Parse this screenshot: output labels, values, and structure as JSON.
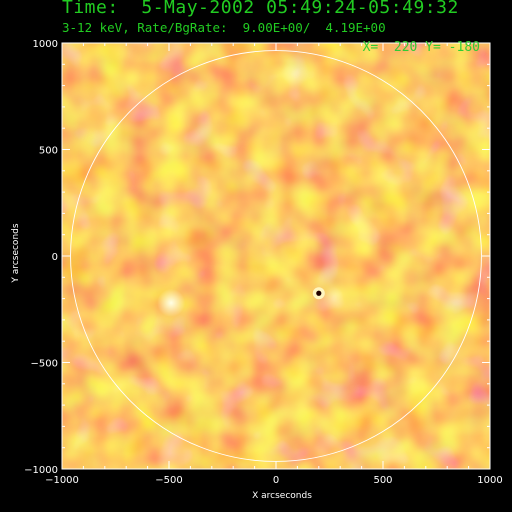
{
  "chart_data": {
    "type": "heatmap",
    "title": "Time:  5-May-2002 05:49:24-05:49:32",
    "subtitle": "3-12 keV, Rate/BgRate:  9.00E+00/  4.19E+00",
    "annotation": "X=  220 Y= -180",
    "xlabel": "X arcseconds",
    "ylabel": "Y arcseconds",
    "xlim": [
      -1000,
      1000
    ],
    "ylim": [
      -1000,
      1000
    ],
    "xticks": [
      -1000,
      -500,
      0,
      500,
      1000
    ],
    "yticks": [
      -1000,
      -500,
      0,
      500,
      1000
    ],
    "x_tick_labels": [
      "−1000",
      "−500",
      "0",
      "500",
      "1000"
    ],
    "y_tick_labels": [
      "−1000",
      "−500",
      "0",
      "500",
      "1000"
    ],
    "solar_limb_radius": 960,
    "colormap": [
      "#d21f0a",
      "#e84a12",
      "#f57d1c",
      "#fdb122",
      "#ffe04a",
      "#fff7aa"
    ],
    "features": [
      {
        "name": "source",
        "x": 200,
        "y": -175
      },
      {
        "name": "bright-spot",
        "x": -490,
        "y": -220
      }
    ]
  }
}
